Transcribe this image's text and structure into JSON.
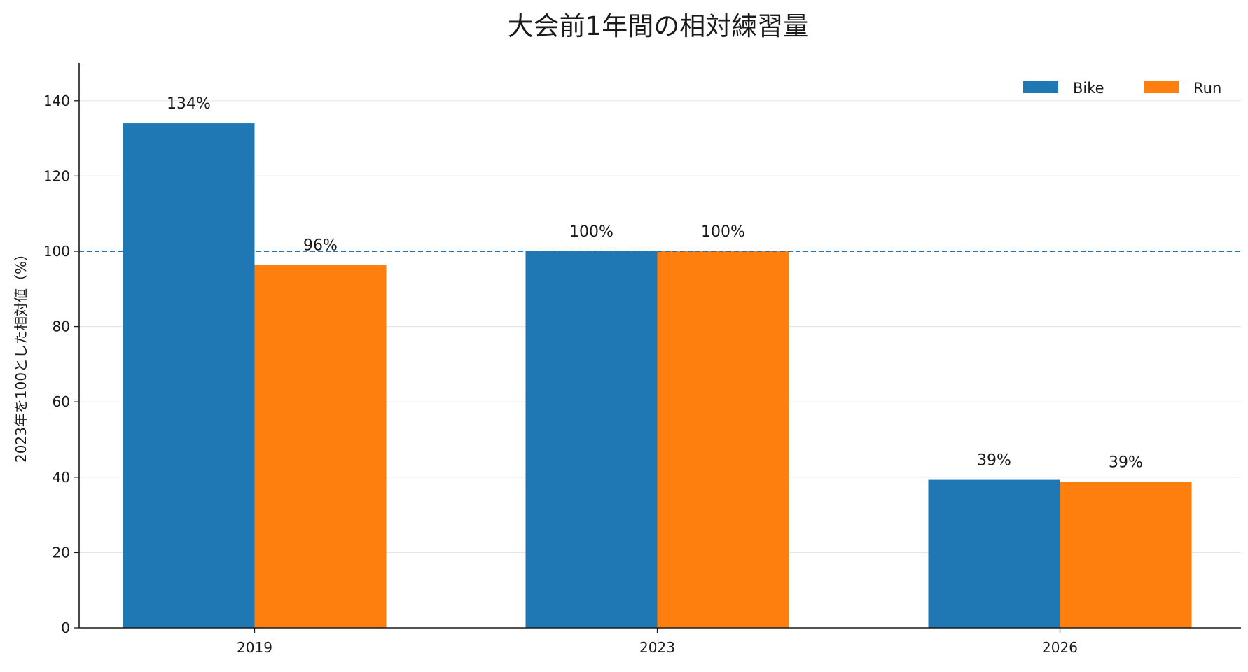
{
  "chart_data": {
    "type": "bar",
    "title": "大会前1年間の相対練習量",
    "xlabel": "",
    "ylabel": "2023年を100とした相対値（%）",
    "categories": [
      "2019",
      "2023",
      "2026"
    ],
    "series": [
      {
        "name": "Bike",
        "color": "#1f77b4",
        "values": [
          134,
          100,
          39.3
        ],
        "labels": [
          "134%",
          "100%",
          "39%"
        ]
      },
      {
        "name": "Run",
        "color": "#ff7f0e",
        "values": [
          96.4,
          100,
          38.8
        ],
        "labels": [
          "96%",
          "100%",
          "39%"
        ]
      }
    ],
    "ylim": [
      0,
      150
    ],
    "yticks": [
      0,
      20,
      40,
      60,
      80,
      100,
      120,
      140
    ],
    "reference_line": {
      "value": 100,
      "style": "dashed",
      "color": "#1f77b4"
    },
    "grid": {
      "y": true,
      "x": false
    },
    "legend": {
      "position": "top-right",
      "orientation": "horizontal"
    }
  }
}
